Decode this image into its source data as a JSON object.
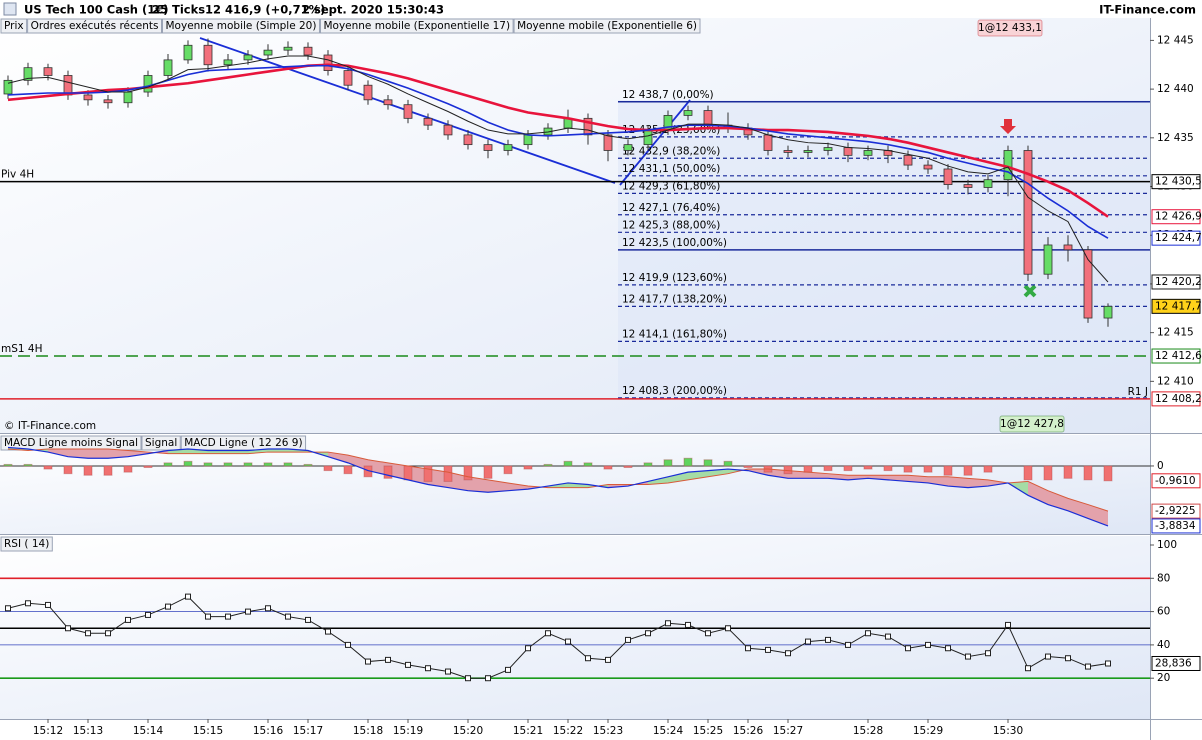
{
  "header": {
    "symbol": "US Tech 100 Cash (1€)",
    "interval": "25 Ticks",
    "price": "12 416,9 (+0,71%)",
    "datetime": "2 sept. 2020 15:30:43",
    "site": "IT-Finance.com"
  },
  "copyright": "© IT-Finance.com",
  "chart_data": [
    {
      "type": "candlestick",
      "candle_name": "Prix",
      "orders_name": "Ordres exécutés récents",
      "orders_color": "#e0202a",
      "up_color": "#66dd66",
      "down_color": "#f2707c",
      "grid": false,
      "categories": [
        null,
        null,
        "15:12",
        null,
        "15:13",
        null,
        null,
        "15:14",
        null,
        null,
        "15:15",
        null,
        null,
        "15:16",
        null,
        "15:17",
        null,
        null,
        "15:18",
        null,
        "15:19",
        null,
        null,
        "15:20",
        null,
        null,
        "15:21",
        null,
        "15:22",
        null,
        "15:23",
        null,
        null,
        "15:24",
        null,
        "15:25",
        null,
        "15:26",
        null,
        "15:27",
        null,
        null,
        null,
        "15:28",
        null,
        null,
        "15:29",
        null,
        null,
        null,
        "15:30",
        null,
        null,
        null,
        null,
        null
      ],
      "open": [
        12439.5,
        12440.9,
        12442.2,
        12441.4,
        12439.4,
        12438.9,
        12438.6,
        12439.7,
        12441.4,
        12443.0,
        12444.5,
        12442.5,
        12443.0,
        12443.5,
        12444.0,
        12444.3,
        12443.5,
        12441.9,
        12440.4,
        12438.9,
        12438.4,
        12437.0,
        12436.3,
        12435.3,
        12434.3,
        12433.7,
        12434.3,
        12435.3,
        12436.0,
        12437.0,
        12435.3,
        12433.7,
        12434.3,
        12435.8,
        12437.3,
        12437.8,
        12436.3,
        12436.0,
        12435.3,
        12433.7,
        12433.5,
        12433.7,
        12434.0,
        12433.2,
        12433.7,
        12433.2,
        12432.2,
        12431.8,
        12430.2,
        12429.9,
        12430.7,
        12433.7,
        12421.0,
        12424.0,
        12423.5,
        12416.5
      ],
      "high": [
        12441.4,
        12442.7,
        12442.6,
        12441.9,
        12439.9,
        12439.4,
        12440.2,
        12441.9,
        12443.6,
        12445.0,
        12445.2,
        12443.6,
        12444.0,
        12444.6,
        12444.9,
        12444.8,
        12444.0,
        12442.3,
        12440.9,
        12439.4,
        12438.9,
        12437.5,
        12436.8,
        12435.8,
        12434.8,
        12434.8,
        12435.8,
        12436.5,
        12437.9,
        12437.5,
        12435.8,
        12434.8,
        12436.3,
        12437.8,
        12438.3,
        12438.3,
        12437.6,
        12436.5,
        12435.8,
        12434.2,
        12434.2,
        12434.5,
        12434.5,
        12434.2,
        12434.2,
        12433.7,
        12432.7,
        12432.3,
        12430.7,
        12431.2,
        12434.2,
        12434.2,
        12424.8,
        12425.0,
        12423.9,
        12418.0
      ],
      "low": [
        12439.0,
        12440.4,
        12440.9,
        12438.9,
        12438.3,
        12438.0,
        12438.1,
        12439.2,
        12440.9,
        12442.6,
        12441.8,
        12442.0,
        12442.5,
        12443.0,
        12443.5,
        12443.0,
        12441.4,
        12439.9,
        12438.4,
        12437.9,
        12436.5,
        12435.8,
        12434.8,
        12433.8,
        12432.9,
        12433.2,
        12433.8,
        12434.8,
        12435.5,
        12434.3,
        12432.6,
        12433.2,
        12433.8,
        12435.3,
        12436.8,
        12435.8,
        12435.5,
        12434.8,
        12433.2,
        12433.0,
        12433.0,
        12433.2,
        12432.5,
        12432.7,
        12432.4,
        12431.7,
        12431.3,
        12429.7,
        12429.2,
        12429.4,
        12429.0,
        12420.3,
        12420.5,
        12422.3,
        12416.0,
        12415.6
      ],
      "close": [
        12440.9,
        12442.2,
        12441.4,
        12439.4,
        12438.9,
        12438.6,
        12439.7,
        12441.4,
        12443.0,
        12444.5,
        12442.5,
        12443.0,
        12443.5,
        12444.0,
        12444.3,
        12443.5,
        12441.9,
        12440.4,
        12438.9,
        12438.4,
        12437.0,
        12436.3,
        12435.3,
        12434.3,
        12433.7,
        12434.3,
        12435.3,
        12436.0,
        12437.0,
        12435.3,
        12433.7,
        12434.3,
        12435.8,
        12437.3,
        12437.8,
        12436.3,
        12436.0,
        12435.3,
        12433.7,
        12433.5,
        12433.7,
        12434.0,
        12433.2,
        12433.7,
        12433.2,
        12432.2,
        12431.8,
        12430.2,
        12429.9,
        12430.7,
        12433.7,
        12421.0,
        12424.0,
        12423.5,
        12416.5,
        12417.7
      ],
      "series": [
        {
          "name": "Moyenne mobile (Simple 20)",
          "color": "#e8143c",
          "line_width": 2.6,
          "values": [
            12438.9,
            12439.1,
            12439.3,
            12439.5,
            12439.7,
            12439.9,
            12440.0,
            12440.2,
            12440.4,
            12440.6,
            12440.9,
            12441.2,
            12441.5,
            12441.8,
            12442.1,
            12442.4,
            12442.5,
            12442.4,
            12442.0,
            12441.6,
            12441.1,
            12440.5,
            12439.9,
            12439.3,
            12438.7,
            12438.1,
            12437.6,
            12437.3,
            12437.0,
            12436.6,
            12436.2,
            12435.9,
            12435.8,
            12435.8,
            12435.9,
            12436.0,
            12436.0,
            12435.9,
            12435.8,
            12435.8,
            12435.7,
            12435.6,
            12435.4,
            12435.2,
            12434.9,
            12434.5,
            12434.0,
            12433.5,
            12433.0,
            12432.5,
            12432.0,
            12431.3,
            12430.5,
            12429.6,
            12428.3,
            12426.9
          ]
        },
        {
          "name": "Moyenne mobile (Exponentielle 17)",
          "color": "#1a2ed6",
          "line_width": 1.6,
          "values": [
            12439.4,
            12439.5,
            12439.6,
            12439.6,
            12439.6,
            12439.7,
            12439.9,
            12440.3,
            12440.9,
            12441.5,
            12441.9,
            12442.0,
            12442.1,
            12442.2,
            12442.3,
            12442.4,
            12442.4,
            12442.1,
            12441.5,
            12440.8,
            12440.1,
            12439.3,
            12438.5,
            12437.6,
            12436.6,
            12435.8,
            12435.3,
            12435.2,
            12435.3,
            12435.4,
            12435.5,
            12435.6,
            12435.8,
            12436.1,
            12436.3,
            12436.3,
            12436.2,
            12436.0,
            12435.7,
            12435.4,
            12435.2,
            12435.0,
            12434.8,
            12434.6,
            12434.3,
            12433.9,
            12433.5,
            12432.9,
            12432.4,
            12431.9,
            12431.5,
            12430.3,
            12428.8,
            12427.5,
            12425.9,
            12424.7
          ]
        },
        {
          "name": "Moyenne mobile (Exponentielle 6)",
          "color": "#222222",
          "line_width": 1,
          "values": [
            12440.6,
            12441.1,
            12441.2,
            12440.7,
            12440.2,
            12439.7,
            12439.7,
            12440.2,
            12441.0,
            12442.0,
            12442.1,
            12442.4,
            12442.7,
            12443.1,
            12443.4,
            12443.4,
            12443.0,
            12442.3,
            12441.3,
            12440.5,
            12439.5,
            12438.6,
            12437.7,
            12436.7,
            12435.8,
            12435.4,
            12435.4,
            12435.6,
            12436.0,
            12435.8,
            12435.2,
            12434.9,
            12435.2,
            12435.8,
            12436.4,
            12436.4,
            12436.3,
            12436.0,
            12435.3,
            12434.8,
            12434.5,
            12434.4,
            12434.0,
            12433.9,
            12433.7,
            12433.3,
            12432.9,
            12432.1,
            12431.5,
            12431.3,
            12432.0,
            12428.9,
            12427.5,
            12426.4,
            12422.5,
            12420.2
          ]
        }
      ],
      "ylim": [
        12404.8,
        12447.3
      ],
      "yticks": [
        {
          "value": 12445,
          "label": "12 445"
        },
        {
          "value": 12440,
          "label": "12 440"
        },
        {
          "value": 12435,
          "label": "12 435"
        },
        {
          "value": 12430,
          "label": "12 430"
        },
        {
          "value": 12425,
          "label": "12 425"
        },
        {
          "value": 12420,
          "label": "12 420"
        },
        {
          "value": 12415,
          "label": "12 415"
        },
        {
          "value": 12410,
          "label": "12 410"
        }
      ],
      "fib_levels": [
        {
          "value": 12438.7,
          "label": "12 438,7 (0,00%)",
          "style": "solid"
        },
        {
          "value": 12435.1,
          "label": "12 435,1 (23,60%)",
          "style": "dashed"
        },
        {
          "value": 12432.9,
          "label": "12 432,9 (38,20%)",
          "style": "dashed"
        },
        {
          "value": 12431.1,
          "label": "12 431,1 (50,00%)",
          "style": "dashed"
        },
        {
          "value": 12429.3,
          "label": "12 429,3 (61,80%)",
          "style": "dashed"
        },
        {
          "value": 12427.1,
          "label": "12 427,1 (76,40%)",
          "style": "dashed"
        },
        {
          "value": 12425.3,
          "label": "12 425,3 (88,00%)",
          "style": "dashed"
        },
        {
          "value": 12423.5,
          "label": "12 423,5 (100,00%)",
          "style": "solid"
        },
        {
          "value": 12419.9,
          "label": "12 419,9 (123,60%)",
          "style": "dashed"
        },
        {
          "value": 12417.7,
          "label": "12 417,7 (138,20%)",
          "style": "dashed"
        },
        {
          "value": 12414.1,
          "label": "12 414,1 (161,80%)",
          "style": "dashed"
        },
        {
          "value": 12408.3,
          "label": "12 408,3 (200,00%)",
          "style": "dashed"
        }
      ],
      "fib_color": "#1a2a9a",
      "pivots": [
        {
          "name": "Piv 4H",
          "value": 12430.5,
          "label": "12 430,5",
          "color": "#000000",
          "style": "solid",
          "name_position": "left"
        },
        {
          "name": "mS1 4H",
          "value": 12412.6,
          "label": "12 412,6",
          "color": "#1a8a1a",
          "style": "dashed",
          "name_position": "left"
        },
        {
          "name": "R1 J",
          "value": 12408.2,
          "label": "12 408,2",
          "color": "#e0202a",
          "style": "solid",
          "name_position": "right"
        }
      ],
      "last_values": [
        {
          "value": 12426.9,
          "label": "12 426,9",
          "color": "#e8143c"
        },
        {
          "value": 12424.7,
          "label": "12 424,7",
          "color": "#1a2ed6"
        },
        {
          "value": 12420.2,
          "label": "12 420,2",
          "color": "#222222"
        },
        {
          "value": 12417.7,
          "label": "12 417,7",
          "color": "#000000",
          "background": "#ffd21a"
        }
      ],
      "orders": [
        {
          "label": "1@12 433,1",
          "color": "#c0202a",
          "background": "#f8d3d6"
        },
        {
          "label": "1@12 427,8",
          "color": "#1f6b1f",
          "background": "#d4f0cc"
        }
      ]
    },
    {
      "type": "macd",
      "ylim": [
        -4.34,
        1.94
      ],
      "yticks": [
        0
      ],
      "area_up": "#a5dca5",
      "area_down": "#e3a2ab",
      "series": [
        {
          "name": "MACD Ligne moins Signal",
          "color": "#e0505a",
          "up_color": "#5ed45e",
          "down_color": "#f07070",
          "values": [
            0.1,
            0.1,
            -0.2,
            -0.5,
            -0.6,
            -0.6,
            -0.4,
            -0.1,
            0.2,
            0.3,
            0.2,
            0.2,
            0.2,
            0.2,
            0.2,
            0.1,
            -0.3,
            -0.5,
            -0.7,
            -0.8,
            -0.9,
            -1.0,
            -1.0,
            -0.9,
            -0.8,
            -0.5,
            -0.2,
            0.1,
            0.3,
            0.2,
            -0.2,
            -0.1,
            0.2,
            0.4,
            0.5,
            0.4,
            0.3,
            -0.1,
            -0.4,
            -0.5,
            -0.4,
            -0.3,
            -0.3,
            -0.2,
            -0.3,
            -0.4,
            -0.4,
            -0.6,
            -0.6,
            -0.4,
            0.0,
            -0.9,
            -0.9,
            -0.8,
            -0.9,
            -0.961
          ]
        },
        {
          "name": "Signal",
          "color": "#d85a3a",
          "values": [
            1.1,
            1.0,
            1.1,
            1.1,
            1.1,
            1.1,
            1.0,
            0.9,
            0.8,
            0.8,
            0.8,
            0.8,
            0.8,
            0.9,
            0.9,
            0.9,
            0.9,
            0.7,
            0.4,
            0.2,
            0.0,
            -0.2,
            -0.4,
            -0.7,
            -0.9,
            -1.1,
            -1.3,
            -1.4,
            -1.4,
            -1.4,
            -1.2,
            -1.2,
            -1.2,
            -1.1,
            -0.9,
            -0.7,
            -0.5,
            -0.2,
            -0.2,
            -0.3,
            -0.4,
            -0.5,
            -0.6,
            -0.6,
            -0.6,
            -0.6,
            -0.7,
            -0.7,
            -0.8,
            -0.9,
            -1.1,
            -1.0,
            -1.6,
            -2.1,
            -2.5,
            -2.9225
          ]
        },
        {
          "name": "MACD Ligne ( 12 26 9)",
          "color": "#1a2ed6",
          "values": [
            1.2,
            1.1,
            0.9,
            0.6,
            0.5,
            0.5,
            0.6,
            0.8,
            1.0,
            1.1,
            1.0,
            1.0,
            1.0,
            1.1,
            1.1,
            1.0,
            0.6,
            0.2,
            -0.3,
            -0.6,
            -0.9,
            -1.2,
            -1.4,
            -1.6,
            -1.7,
            -1.6,
            -1.5,
            -1.3,
            -1.1,
            -1.2,
            -1.4,
            -1.3,
            -1.0,
            -0.7,
            -0.4,
            -0.3,
            -0.2,
            -0.3,
            -0.6,
            -0.8,
            -0.8,
            -0.8,
            -0.9,
            -0.8,
            -0.9,
            -1.0,
            -1.1,
            -1.3,
            -1.4,
            -1.3,
            -1.1,
            -1.9,
            -2.5,
            -2.9,
            -3.4,
            -3.8834
          ]
        }
      ],
      "last_values": [
        {
          "value": -0.961,
          "label": "-0,9610",
          "color": "#e0202a"
        },
        {
          "value": -2.9225,
          "label": "-2,9225",
          "color": "#d04848"
        },
        {
          "value": -3.8834,
          "label": "-3,8834",
          "color": "#1a2ed6"
        }
      ]
    },
    {
      "type": "line",
      "ylim": [
        -3.9,
        104.8
      ],
      "yticks": [
        20,
        40,
        60,
        80,
        100
      ],
      "levels": [
        {
          "value": 80,
          "color": "#e0202a"
        },
        {
          "value": 60,
          "color": "#3344bb"
        },
        {
          "value": 50,
          "color": "#000000"
        },
        {
          "value": 40,
          "color": "#3344bb"
        },
        {
          "value": 20,
          "color": "#1a9a1a"
        }
      ],
      "series": [
        {
          "name": "RSI ( 14)",
          "color": "#222222",
          "values": [
            62,
            65,
            64,
            50,
            47,
            47,
            55,
            58,
            63,
            69,
            57,
            57,
            60,
            62,
            57,
            55,
            48,
            40,
            30,
            31,
            28,
            26,
            24,
            20,
            20,
            25,
            38,
            47,
            42,
            32,
            31,
            43,
            47,
            53,
            52,
            47,
            50,
            38,
            37,
            35,
            42,
            43,
            40,
            47,
            45,
            38,
            40,
            38,
            33,
            35,
            52,
            26,
            33,
            32,
            27,
            28.836
          ]
        }
      ],
      "last_values": [
        {
          "value": 28.836,
          "label": "28,836",
          "color": "#000000"
        }
      ]
    }
  ]
}
